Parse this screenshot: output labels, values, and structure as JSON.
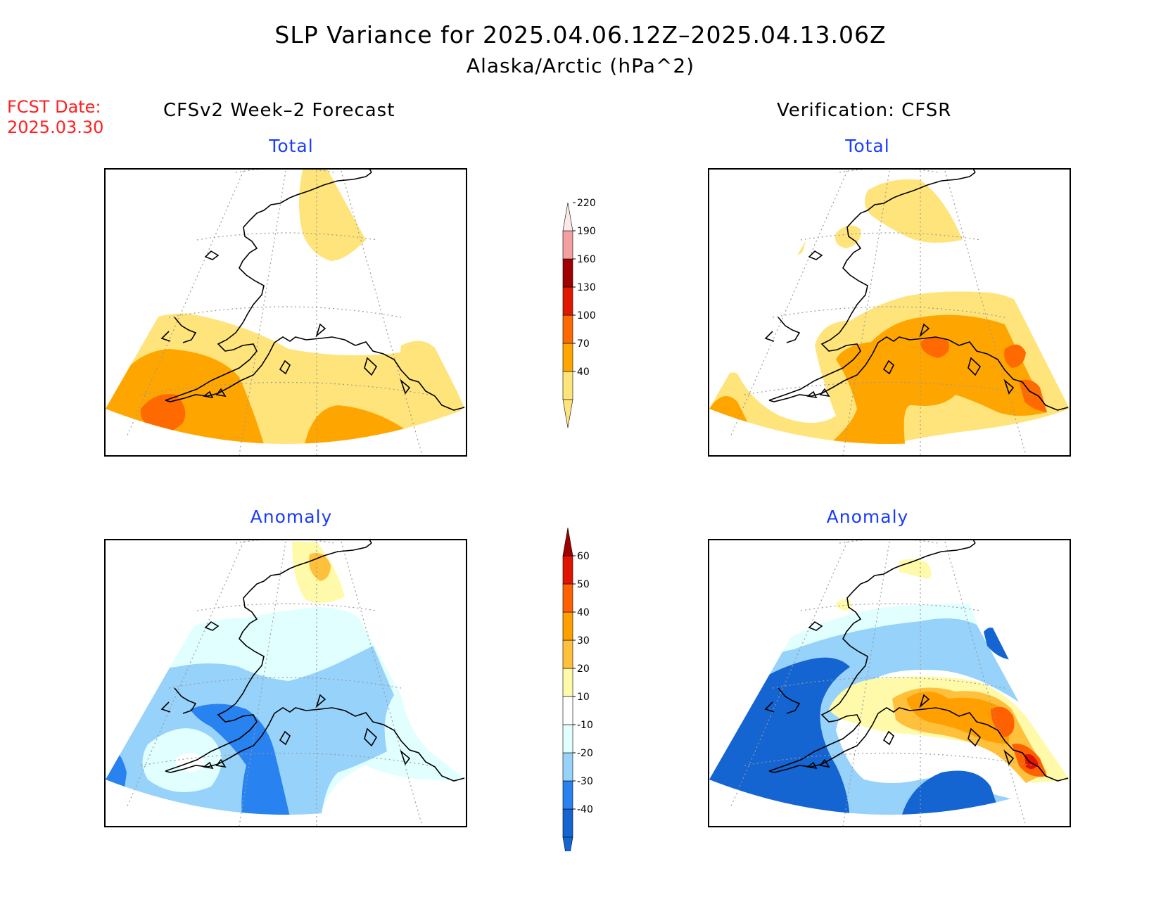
{
  "header": {
    "title": "SLP Variance for 2025.04.06.12Z–2025.04.13.06Z",
    "subtitle": "Alaska/Arctic (hPa^2)",
    "fcst_date_label": "FCST Date:",
    "fcst_date_value": "2025.03.30"
  },
  "columns": {
    "left_heading": "CFSv2 Week–2 Forecast",
    "right_heading": "Verification: CFSR"
  },
  "panels": {
    "forecast_total_title": "Total",
    "verification_total_title": "Total",
    "forecast_anomaly_title": "Anomaly",
    "verification_anomaly_title": "Anomaly"
  },
  "colorbar_total": {
    "labels": [
      "40",
      "70",
      "100",
      "130",
      "160",
      "190",
      "220"
    ],
    "colors": [
      "#fee47a",
      "#ffa500",
      "#ff6a00",
      "#e01800",
      "#a00000",
      "#f4a0a0",
      "#fde8e8"
    ]
  },
  "colorbar_anomaly": {
    "labels": [
      "-40",
      "-30",
      "-20",
      "-10",
      "10",
      "20",
      "30",
      "40",
      "50",
      "60"
    ],
    "colors": [
      "#1464d2",
      "#2882f0",
      "#96d2fa",
      "#e1ffff",
      "#ffffff",
      "#fffaaa",
      "#ffc03c",
      "#ffa000",
      "#ff6000",
      "#e01400",
      "#a00000"
    ]
  },
  "palette": {
    "yellow": "#fee47a",
    "orange": "#ffa500",
    "dark_orange": "#ff6a00",
    "light_cyan": "#e1ffff",
    "light_blue": "#96d2fa",
    "blue": "#2882f0",
    "dark_blue": "#1464d2"
  }
}
